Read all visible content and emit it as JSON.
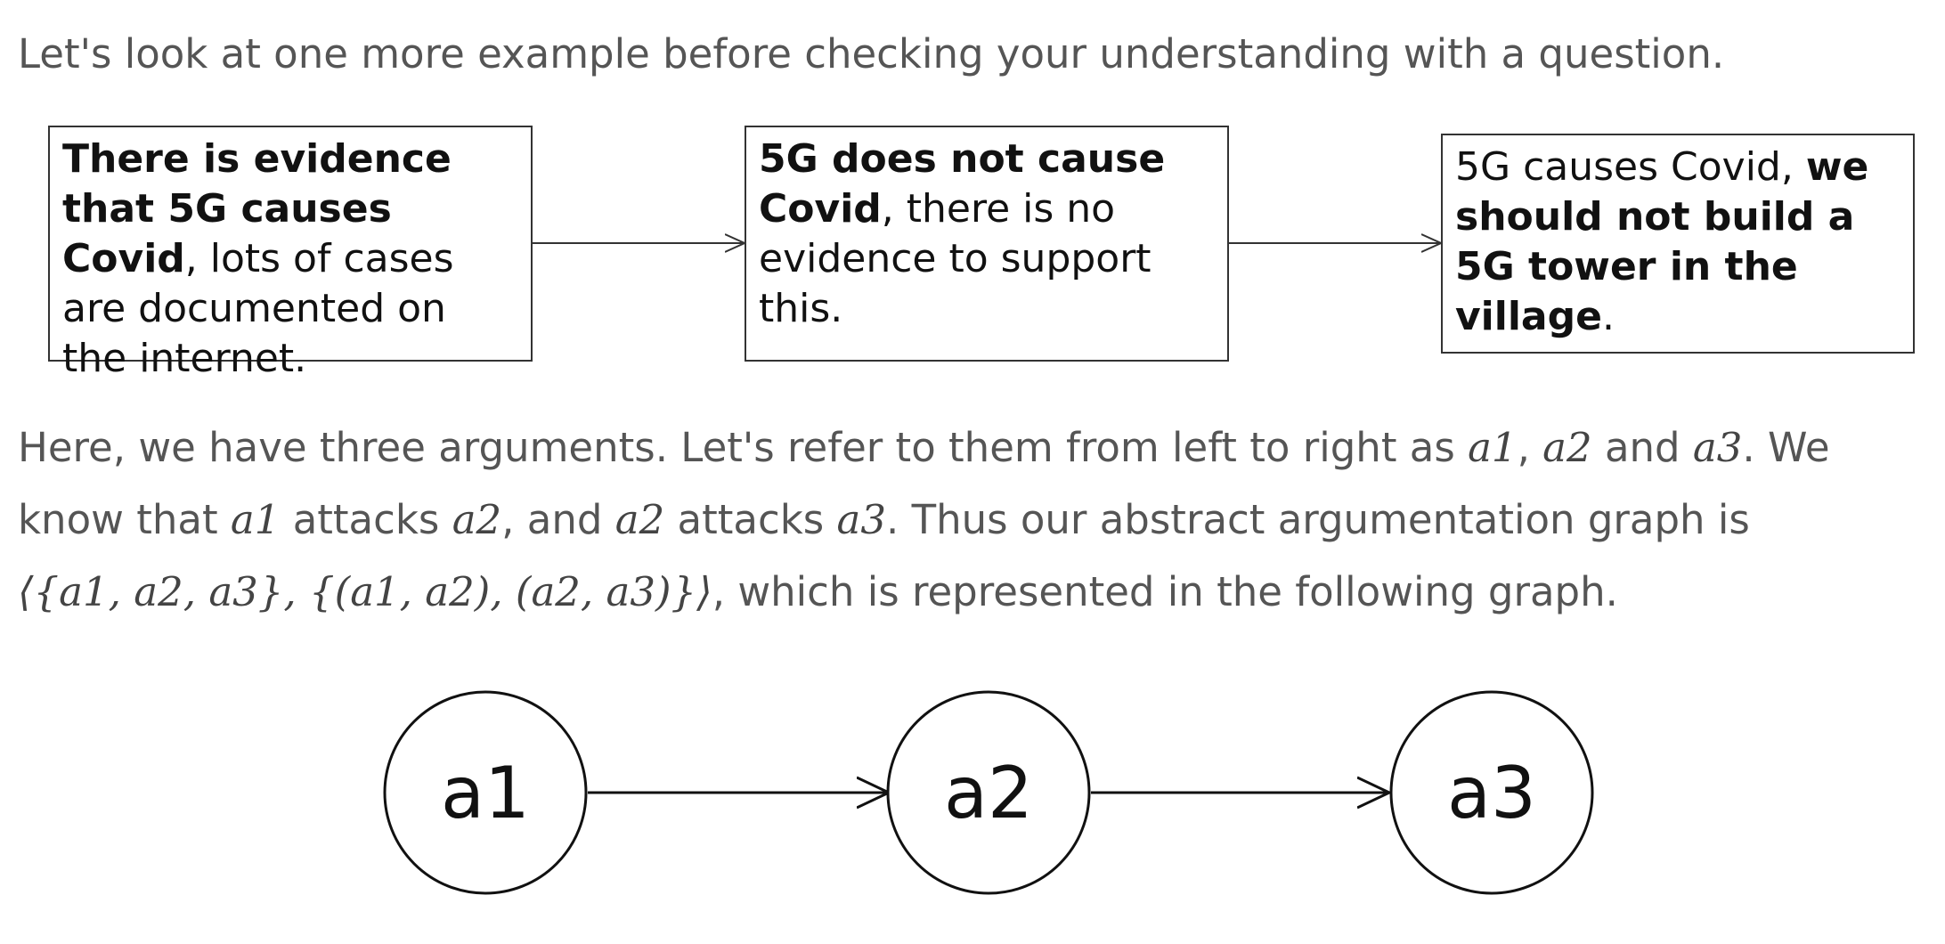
{
  "intro": "Let's look at one more example before checking your understanding with a question.",
  "argument_boxes": [
    {
      "parts": [
        {
          "text": "There is evidence that 5G causes Covid",
          "bold": true
        },
        {
          "text": ", lots of cases are documented on the internet.",
          "bold": false
        }
      ]
    },
    {
      "parts": [
        {
          "text": "5G does not cause Covid",
          "bold": true
        },
        {
          "text": ", there is no evidence to support this.",
          "bold": false
        }
      ]
    },
    {
      "parts": [
        {
          "text": "5G causes Covid, ",
          "bold": false
        },
        {
          "text": "we should not build a 5G tower in the village",
          "bold": true
        },
        {
          "text": ".",
          "bold": false
        }
      ]
    }
  ],
  "explanation": {
    "s1": "Here, we have three arguments. Let's refer to them from left to right as ",
    "comma1": ", ",
    "and1": " and ",
    "s2": ". We know that ",
    "attacks1": " attacks ",
    "comma_and": ", and ",
    "attacks2": " attacks ",
    "s3": ". Thus our abstract argumentation graph is",
    "s4": ", which is represented in the following graph."
  },
  "math": {
    "a1": "a1",
    "a2": "a2",
    "a3": "a3",
    "graph": "⟨{a1, a2, a3}, {(a1, a2), (a2, a3)}⟩"
  },
  "graph_nodes": [
    "a1",
    "a2",
    "a3"
  ],
  "graph_edges": [
    [
      "a1",
      "a2"
    ],
    [
      "a2",
      "a3"
    ]
  ]
}
